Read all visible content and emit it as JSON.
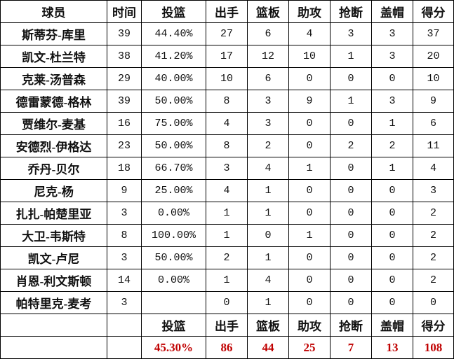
{
  "headers": [
    "球员",
    "时间",
    "投篮",
    "出手",
    "篮板",
    "助攻",
    "抢断",
    "盖帽",
    "得分"
  ],
  "rows": [
    [
      "斯蒂芬-库里",
      "39",
      "44.40%",
      "27",
      "6",
      "4",
      "3",
      "3",
      "37"
    ],
    [
      "凯文-杜兰特",
      "38",
      "41.20%",
      "17",
      "12",
      "10",
      "1",
      "3",
      "20"
    ],
    [
      "克莱-汤普森",
      "29",
      "40.00%",
      "10",
      "6",
      "0",
      "0",
      "0",
      "10"
    ],
    [
      "德雷蒙德-格林",
      "39",
      "50.00%",
      "8",
      "3",
      "9",
      "1",
      "3",
      "9"
    ],
    [
      "贾维尔-麦基",
      "16",
      "75.00%",
      "4",
      "3",
      "0",
      "0",
      "1",
      "6"
    ],
    [
      "安德烈-伊格达",
      "23",
      "50.00%",
      "8",
      "2",
      "0",
      "2",
      "2",
      "11"
    ],
    [
      "乔丹-贝尔",
      "18",
      "66.70%",
      "3",
      "4",
      "1",
      "0",
      "1",
      "4"
    ],
    [
      "尼克-杨",
      "9",
      "25.00%",
      "4",
      "1",
      "0",
      "0",
      "0",
      "3"
    ],
    [
      "扎扎-帕楚里亚",
      "3",
      "0.00%",
      "1",
      "1",
      "0",
      "0",
      "0",
      "2"
    ],
    [
      "大卫-韦斯特",
      "8",
      "100.00%",
      "1",
      "0",
      "1",
      "0",
      "0",
      "2"
    ],
    [
      "凯文-卢尼",
      "3",
      "50.00%",
      "2",
      "1",
      "0",
      "0",
      "0",
      "2"
    ],
    [
      "肖恩-利文斯顿",
      "14",
      "0.00%",
      "1",
      "4",
      "0",
      "0",
      "0",
      "2"
    ],
    [
      "帕特里克-麦考",
      "3",
      "",
      "0",
      "1",
      "0",
      "0",
      "0",
      "0"
    ]
  ],
  "summary_headers": [
    "",
    "",
    "投篮",
    "出手",
    "篮板",
    "助攻",
    "抢断",
    "盖帽",
    "得分"
  ],
  "totals": [
    "",
    "",
    "45.30%",
    "86",
    "44",
    "25",
    "7",
    "13",
    "108"
  ],
  "colors": {
    "total_text": "#c00000",
    "border": "#000000"
  }
}
